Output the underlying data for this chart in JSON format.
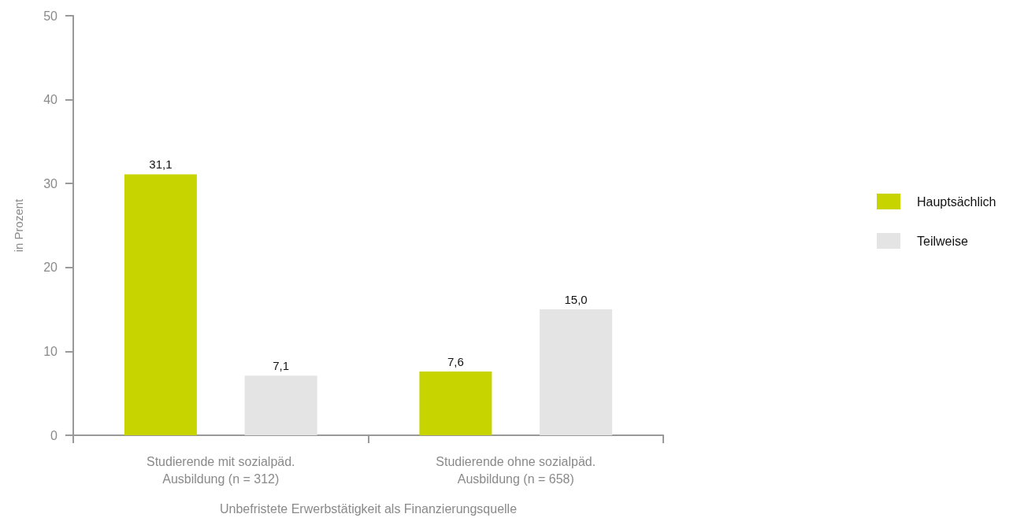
{
  "chart_data": {
    "type": "bar",
    "xlabel": "Unbefristete Erwerbstätigkeit als Finanzierungsquelle",
    "ylabel": "in Prozent",
    "categories": [
      "Studierende mit sozialpäd.\nAusbildung (n = 312)",
      "Studierende ohne sozialpäd.\nAusbildung (n = 658)"
    ],
    "series": [
      {
        "name": "Hauptsächlich",
        "color": "#c8d400",
        "values": [
          31.1,
          7.6
        ],
        "value_labels": [
          "31,1",
          "7,6"
        ]
      },
      {
        "name": "Teilweise",
        "color": "#e3e4e3",
        "values": [
          7.1,
          15.0
        ],
        "value_labels": [
          "7,1",
          "15,0"
        ]
      }
    ],
    "ylim": [
      0,
      50
    ],
    "yticks": [
      0,
      10,
      20,
      30,
      40,
      50
    ],
    "grid": false,
    "legend": "right"
  }
}
